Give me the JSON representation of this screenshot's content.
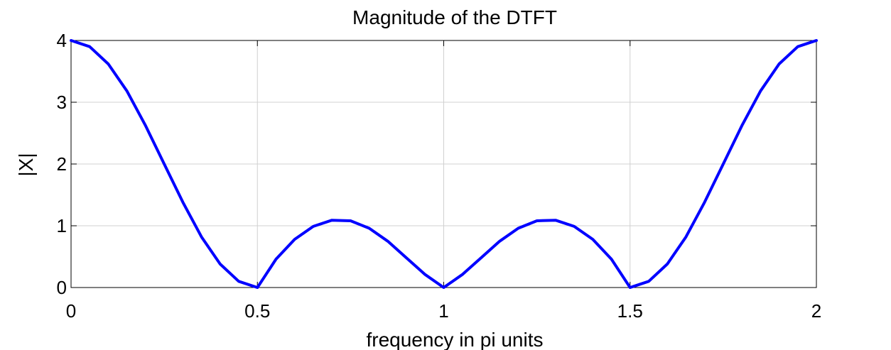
{
  "chart_data": {
    "type": "line",
    "title": "Magnitude of the DTFT",
    "xlabel": "frequency in pi units",
    "ylabel": "|X|",
    "xlim": [
      0,
      2
    ],
    "ylim": [
      0,
      4
    ],
    "xticks": [
      0,
      0.5,
      1,
      1.5,
      2
    ],
    "xtick_labels": [
      "0",
      "0.5",
      "1",
      "1.5",
      "2"
    ],
    "yticks": [
      0,
      1,
      2,
      3,
      4
    ],
    "ytick_labels": [
      "0",
      "1",
      "2",
      "3",
      "4"
    ],
    "grid": true,
    "line_color": "#0000ff",
    "series": [
      {
        "x": [
          0,
          0.05,
          0.1,
          0.15,
          0.2,
          0.25,
          0.3,
          0.35,
          0.4,
          0.45,
          0.5,
          0.55,
          0.6,
          0.65,
          0.7,
          0.75,
          0.8,
          0.85,
          0.9,
          0.95,
          1.0,
          1.05,
          1.1,
          1.15,
          1.2,
          1.25,
          1.3,
          1.35,
          1.4,
          1.45,
          1.5,
          1.55,
          1.6,
          1.65,
          1.7,
          1.75,
          1.8,
          1.85,
          1.9,
          1.95,
          2.0
        ],
        "values": [
          4.0,
          3.9,
          3.62,
          3.18,
          2.62,
          2.0,
          1.38,
          0.82,
          0.38,
          0.1,
          0.0,
          0.46,
          0.78,
          0.99,
          1.09,
          1.08,
          0.96,
          0.75,
          0.48,
          0.21,
          0.0,
          0.21,
          0.48,
          0.75,
          0.96,
          1.08,
          1.09,
          0.99,
          0.78,
          0.46,
          0.0,
          0.1,
          0.38,
          0.82,
          1.38,
          2.0,
          2.62,
          3.18,
          3.62,
          3.9,
          4.0
        ]
      }
    ]
  }
}
